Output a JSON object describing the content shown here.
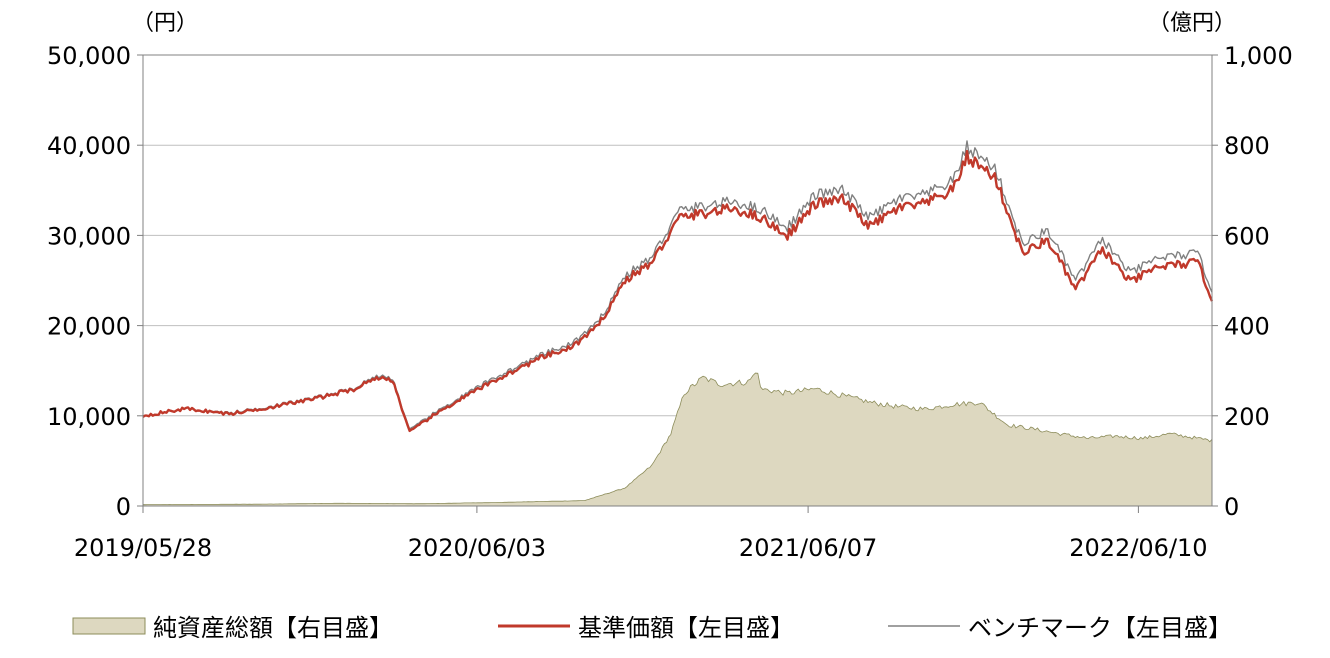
{
  "chart_data": {
    "type": "line",
    "title": "",
    "left_axis": {
      "unit_label": "（円）",
      "ylim": [
        0,
        50000
      ],
      "ticks": [
        0,
        10000,
        20000,
        30000,
        40000,
        50000
      ],
      "tick_labels": [
        "0",
        "10,000",
        "20,000",
        "30,000",
        "40,000",
        "50,000"
      ]
    },
    "right_axis": {
      "unit_label": "（億円）",
      "ylim": [
        0,
        1000
      ],
      "ticks": [
        0,
        200,
        400,
        600,
        800,
        1000
      ],
      "tick_labels": [
        "0",
        "200",
        "400",
        "600",
        "800",
        "1,000"
      ]
    },
    "x_axis": {
      "start": "2019/05/28",
      "end": "2022/08/31",
      "tick_labels": [
        "2019/05/28",
        "2020/06/03",
        "2021/06/07",
        "2022/06/10"
      ]
    },
    "grid": true,
    "legend_position": "bottom",
    "series": [
      {
        "name": "純資産総額【右目盛】",
        "type": "area",
        "axis": "right",
        "color": "#ddd8c0",
        "edge_color": "#8c8c5a",
        "x": [
          "2019/05/28",
          "2019/10/01",
          "2020/01/01",
          "2020/04/01",
          "2020/07/01",
          "2020/10/01",
          "2020/11/15",
          "2020/12/15",
          "2021/01/05",
          "2021/01/20",
          "2021/02/10",
          "2021/02/16",
          "2021/03/01",
          "2021/04/01",
          "2021/04/12",
          "2021/04/15",
          "2021/05/15",
          "2021/06/15",
          "2021/07/15",
          "2021/08/15",
          "2021/09/15",
          "2021/10/15",
          "2021/11/15",
          "2021/12/15",
          "2022/01/15",
          "2022/02/15",
          "2022/03/15",
          "2022/04/15",
          "2022/05/15",
          "2022/06/15",
          "2022/07/15",
          "2022/08/31"
        ],
        "values": [
          3,
          4,
          6,
          5,
          8,
          12,
          40,
          90,
          160,
          250,
          285,
          280,
          270,
          275,
          300,
          260,
          250,
          260,
          245,
          230,
          220,
          215,
          225,
          230,
          180,
          170,
          160,
          150,
          155,
          150,
          160,
          145
        ]
      },
      {
        "name": "基準価額【左目盛】",
        "type": "line",
        "axis": "left",
        "color": "#c0392b",
        "x": [
          "2019/05/28",
          "2019/07/15",
          "2019/09/01",
          "2019/10/20",
          "2019/12/10",
          "2020/01/20",
          "2020/02/10",
          "2020/03/01",
          "2020/03/20",
          "2020/04/15",
          "2020/05/15",
          "2020/06/15",
          "2020/07/15",
          "2020/08/15",
          "2020/09/15",
          "2020/10/15",
          "2020/11/15",
          "2020/12/15",
          "2021/01/15",
          "2021/02/15",
          "2021/03/15",
          "2021/04/15",
          "2021/05/15",
          "2021/06/15",
          "2021/07/15",
          "2021/08/15",
          "2021/09/15",
          "2021/10/15",
          "2021/11/15",
          "2021/12/01",
          "2022/01/01",
          "2022/02/01",
          "2022/03/01",
          "2022/04/01",
          "2022/05/01",
          "2022/06/01",
          "2022/07/01",
          "2022/08/15",
          "2022/08/31"
        ],
        "values": [
          10000,
          10800,
          10200,
          11000,
          12000,
          13000,
          14200,
          14000,
          8200,
          10000,
          11800,
          13500,
          15000,
          16500,
          17500,
          19800,
          25000,
          27000,
          32000,
          32500,
          33000,
          32000,
          30000,
          33500,
          34000,
          31000,
          33000,
          33500,
          35000,
          38700,
          36500,
          28000,
          29500,
          24000,
          28500,
          24800,
          26500,
          27000,
          23000
        ]
      },
      {
        "name": "ベンチマーク【左目盛】",
        "type": "line",
        "axis": "left",
        "color": "#808080",
        "x": [
          "2019/05/28",
          "2019/07/15",
          "2019/09/01",
          "2019/10/20",
          "2019/12/10",
          "2020/01/20",
          "2020/02/10",
          "2020/03/01",
          "2020/03/20",
          "2020/04/15",
          "2020/05/15",
          "2020/06/15",
          "2020/07/15",
          "2020/08/15",
          "2020/09/15",
          "2020/10/15",
          "2020/11/15",
          "2020/12/15",
          "2021/01/15",
          "2021/02/15",
          "2021/03/15",
          "2021/04/15",
          "2021/05/15",
          "2021/06/15",
          "2021/07/15",
          "2021/08/15",
          "2021/09/15",
          "2021/10/15",
          "2021/11/15",
          "2021/12/01",
          "2022/01/01",
          "2022/02/01",
          "2022/03/01",
          "2022/04/01",
          "2022/05/01",
          "2022/06/01",
          "2022/07/01",
          "2022/08/15",
          "2022/08/31"
        ],
        "values": [
          10000,
          10800,
          10300,
          11100,
          12100,
          13100,
          14400,
          14200,
          8400,
          10200,
          12000,
          13800,
          15300,
          16800,
          17900,
          20200,
          25500,
          27600,
          32800,
          33300,
          33800,
          32900,
          30900,
          34500,
          35000,
          32000,
          34000,
          34500,
          36000,
          39800,
          37500,
          29000,
          30600,
          25000,
          29600,
          25800,
          27500,
          28000,
          24000
        ]
      }
    ]
  }
}
